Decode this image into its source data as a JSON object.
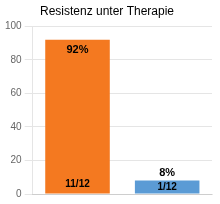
{
  "chart_data": {
    "type": "bar",
    "title": "Resistenz unter Therapie",
    "categories": [
      null,
      null
    ],
    "values": [
      92,
      8
    ],
    "value_labels": [
      "92%",
      "8%"
    ],
    "data_labels": true,
    "annotations": [
      "11/12",
      "1/12"
    ],
    "colors": [
      "#F47920",
      "#5B9BD5"
    ],
    "ylim": [
      0,
      100
    ],
    "yticks": [
      0,
      20,
      40,
      60,
      80,
      100
    ],
    "grid": true,
    "tick_labels": "y"
  }
}
